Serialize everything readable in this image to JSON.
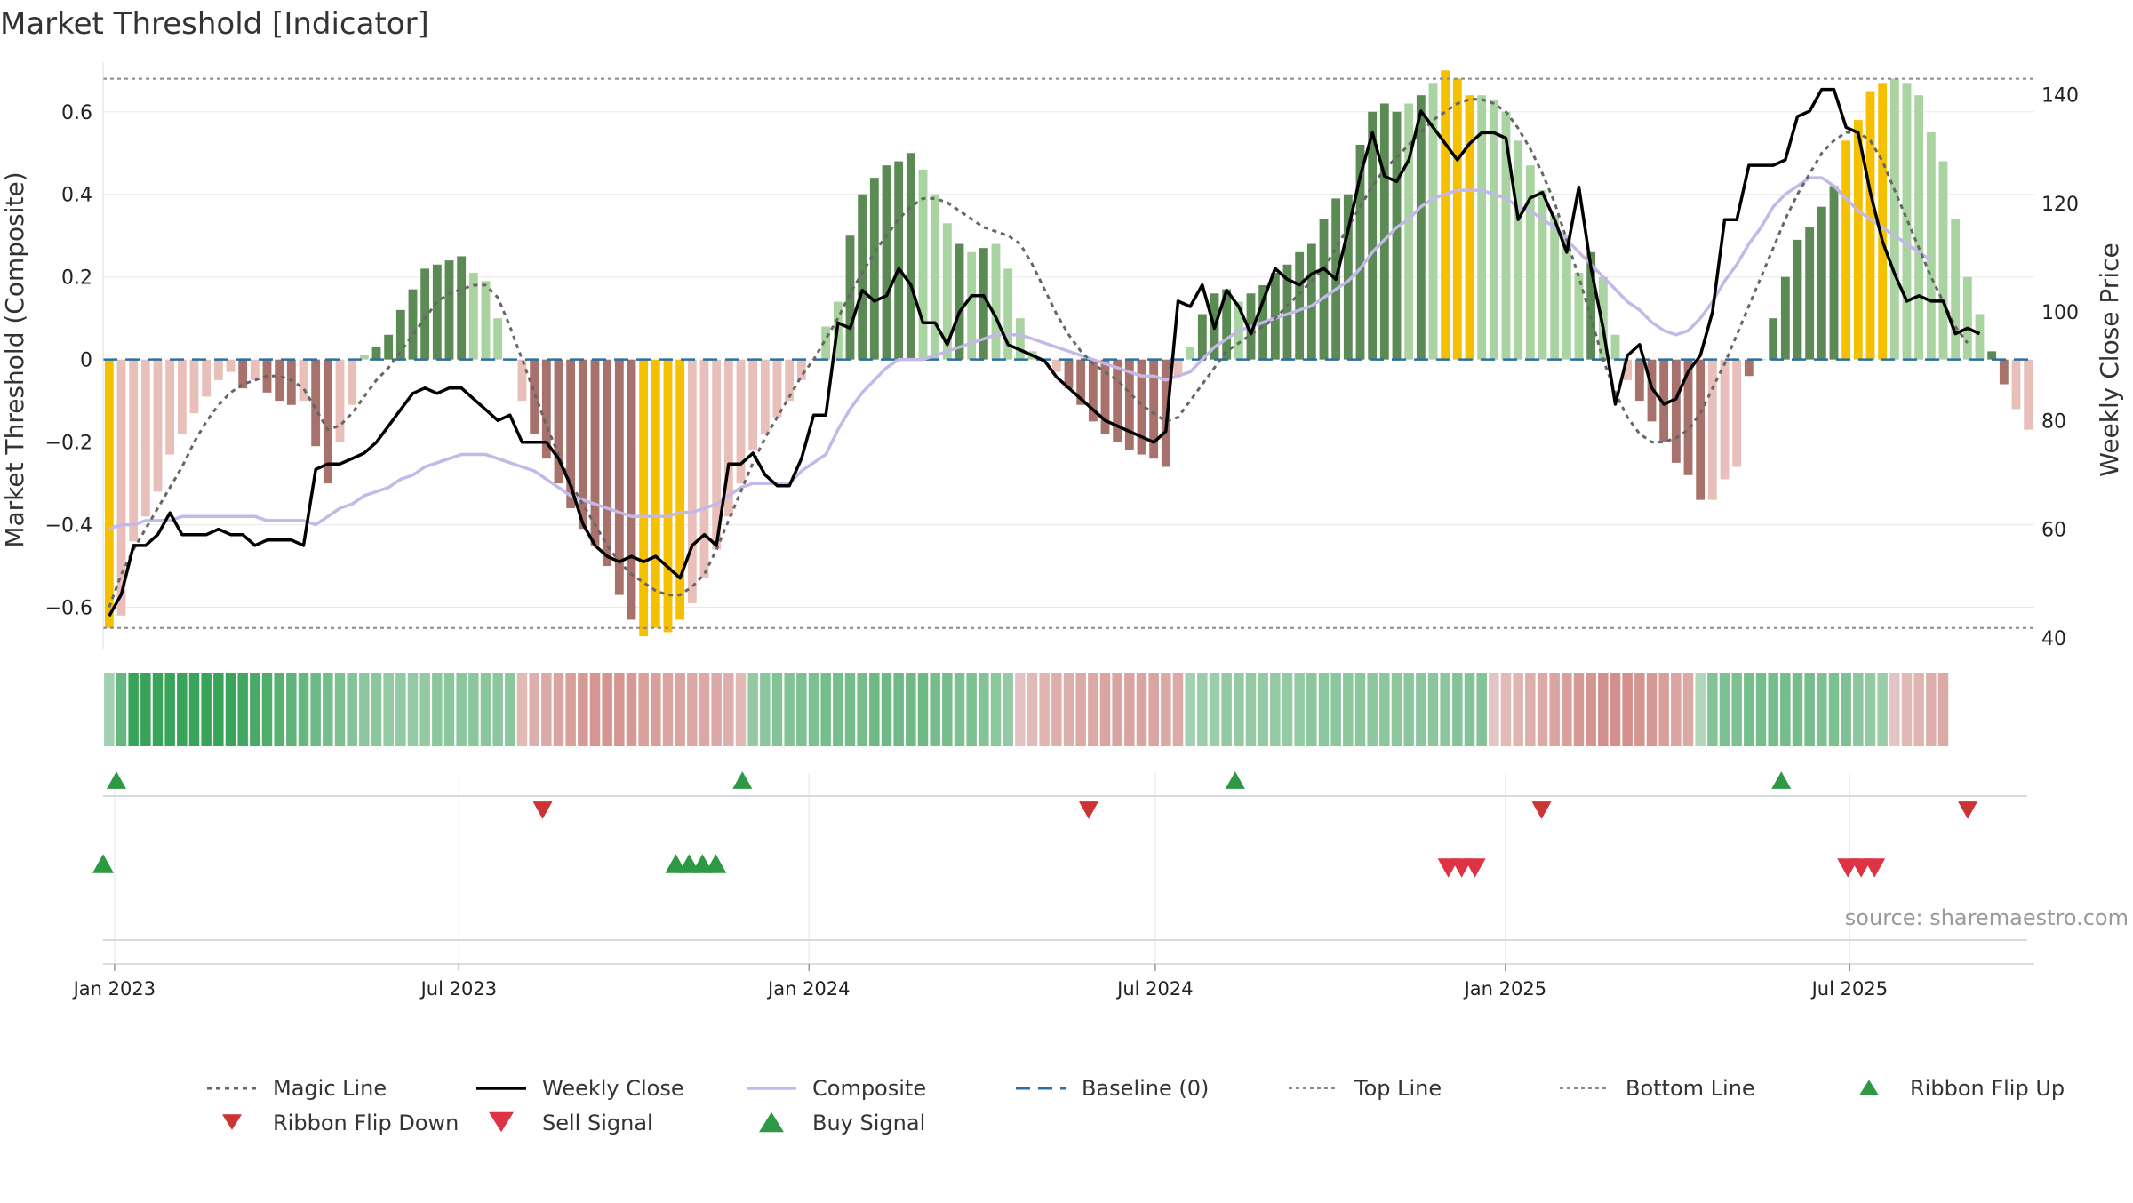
{
  "header": {
    "title": "Market Threshold [Indicator]"
  },
  "source_note": "source: sharemaestro.com",
  "colors": {
    "magic_line": "#666666",
    "weekly_close": "#000000",
    "composite": "#c3b8e8",
    "baseline": "#2e6f9e",
    "threshold_lines": "#888888",
    "bar_strong_pos": "#5b8a55",
    "bar_weak_pos": "#a9d3a0",
    "bar_strong_neg": "#a6726b",
    "bar_weak_neg": "#e9c0b9",
    "bar_extreme": "#f5c000",
    "ribbon_green": "#3aa35a",
    "ribbon_red": "#c9706a",
    "flip_up": "#2e9944",
    "flip_down": "#cc3333",
    "buy": "#2e9944",
    "sell": "#dd3344"
  },
  "chart_data": {
    "type": "bar",
    "title": "Market Threshold [Indicator]",
    "ylabel": "Market Threshold (Composite)",
    "ylabel_right": "Weekly Close Price",
    "ylim": [
      -0.7,
      0.72
    ],
    "ylim_right": [
      38,
      146
    ],
    "yticks": [
      -0.6,
      -0.4,
      -0.2,
      0,
      0.2,
      0.4,
      0.6
    ],
    "ytick_labels": [
      "−0.6",
      "−0.4",
      "−0.2",
      "0",
      "0.2",
      "0.4",
      "0.6"
    ],
    "yticks_right": [
      40,
      60,
      80,
      100,
      120,
      140
    ],
    "top_line": 0.68,
    "bottom_line": -0.65,
    "x_start": "2022-12-26",
    "x_end": "2025-10-06",
    "date_ticks": [
      {
        "date": "2023-01-01",
        "label": "Jan 2023"
      },
      {
        "date": "2023-07-01",
        "label": "Jul 2023"
      },
      {
        "date": "2024-01-01",
        "label": "Jan 2024"
      },
      {
        "date": "2024-07-01",
        "label": "Jul 2024"
      },
      {
        "date": "2025-01-01",
        "label": "Jan 2025"
      },
      {
        "date": "2025-07-01",
        "label": "Jul 2025"
      }
    ],
    "composite_bars": [
      -0.65,
      -0.62,
      -0.44,
      -0.38,
      -0.32,
      -0.23,
      -0.18,
      -0.13,
      -0.09,
      -0.05,
      -0.03,
      -0.07,
      -0.05,
      -0.08,
      -0.1,
      -0.11,
      -0.1,
      -0.21,
      -0.3,
      -0.2,
      -0.11,
      0.01,
      0.03,
      0.06,
      0.12,
      0.17,
      0.22,
      0.23,
      0.24,
      0.25,
      0.21,
      0.19,
      0.1,
      0.0,
      -0.1,
      -0.18,
      -0.24,
      -0.3,
      -0.36,
      -0.41,
      -0.45,
      -0.5,
      -0.57,
      -0.63,
      -0.67,
      -0.65,
      -0.66,
      -0.63,
      -0.59,
      -0.53,
      -0.46,
      -0.38,
      -0.3,
      -0.22,
      -0.18,
      -0.14,
      -0.1,
      -0.05,
      0.0,
      0.08,
      0.14,
      0.3,
      0.4,
      0.44,
      0.47,
      0.48,
      0.5,
      0.46,
      0.4,
      0.33,
      0.28,
      0.26,
      0.27,
      0.28,
      0.22,
      0.1,
      0.02,
      0.0,
      -0.03,
      -0.07,
      -0.11,
      -0.15,
      -0.18,
      -0.2,
      -0.22,
      -0.23,
      -0.24,
      -0.26,
      -0.04,
      0.03,
      0.11,
      0.16,
      0.17,
      0.14,
      0.16,
      0.18,
      0.21,
      0.23,
      0.26,
      0.28,
      0.34,
      0.39,
      0.4,
      0.52,
      0.6,
      0.62,
      0.6,
      0.62,
      0.64,
      0.67,
      0.7,
      0.68,
      0.64,
      0.64,
      0.63,
      0.6,
      0.53,
      0.47,
      0.41,
      0.35,
      0.3,
      0.21,
      0.26,
      0.2,
      0.06,
      -0.05,
      -0.1,
      -0.15,
      -0.2,
      -0.25,
      -0.28,
      -0.34,
      -0.34,
      -0.29,
      -0.26,
      -0.04,
      0.0,
      0.1,
      0.2,
      0.29,
      0.32,
      0.37,
      0.42,
      0.53,
      0.58,
      0.65,
      0.67,
      0.68,
      0.67,
      0.64,
      0.55,
      0.48,
      0.34,
      0.2,
      0.11,
      0.02,
      -0.06,
      -0.12,
      -0.17
    ],
    "bar_tones": [
      "E",
      "W",
      "W",
      "W",
      "W",
      "W",
      "W",
      "W",
      "W",
      "W",
      "W",
      "S",
      "W",
      "S",
      "S",
      "S",
      "W",
      "S",
      "S",
      "W",
      "W",
      "W",
      "S",
      "S",
      "S",
      "S",
      "S",
      "S",
      "S",
      "S",
      "W",
      "W",
      "W",
      "W",
      "W",
      "S",
      "S",
      "S",
      "S",
      "S",
      "S",
      "S",
      "S",
      "S",
      "E",
      "E",
      "E",
      "E",
      "W",
      "W",
      "W",
      "W",
      "W",
      "W",
      "W",
      "W",
      "W",
      "W",
      "W",
      "W",
      "W",
      "S",
      "S",
      "S",
      "S",
      "S",
      "S",
      "W",
      "W",
      "W",
      "S",
      "W",
      "S",
      "W",
      "W",
      "W",
      "W",
      "W",
      "W",
      "S",
      "S",
      "S",
      "S",
      "S",
      "S",
      "S",
      "S",
      "S",
      "W",
      "W",
      "S",
      "S",
      "S",
      "W",
      "S",
      "S",
      "S",
      "S",
      "S",
      "S",
      "S",
      "S",
      "S",
      "S",
      "S",
      "S",
      "S",
      "W",
      "S",
      "W",
      "E",
      "E",
      "E",
      "W",
      "W",
      "W",
      "W",
      "W",
      "W",
      "W",
      "W",
      "W",
      "S",
      "W",
      "W",
      "W",
      "S",
      "S",
      "S",
      "S",
      "S",
      "S",
      "W",
      "W",
      "W",
      "S",
      "S",
      "S",
      "S",
      "S",
      "S",
      "S",
      "S",
      "E",
      "E",
      "E",
      "E",
      "W",
      "W",
      "W",
      "W",
      "W",
      "W",
      "W",
      "W",
      "S",
      "S"
    ],
    "weekly_close": [
      44,
      48,
      57,
      57,
      59,
      63,
      59,
      59,
      59,
      60,
      59,
      59,
      57,
      58,
      58,
      58,
      57,
      71,
      72,
      72,
      73,
      74,
      76,
      79,
      82,
      85,
      86,
      85,
      86,
      86,
      84,
      82,
      80,
      81,
      76,
      76,
      76,
      73,
      68,
      61,
      57,
      55,
      54,
      55,
      54,
      55,
      53,
      51,
      57,
      59,
      57,
      72,
      72,
      74,
      70,
      68,
      68,
      73,
      81,
      81,
      98,
      97,
      104,
      102,
      103,
      108,
      105,
      98,
      98,
      94,
      100,
      103,
      103,
      99,
      94,
      93,
      92,
      91,
      88,
      86,
      84,
      82,
      80,
      79,
      78,
      77,
      76,
      78,
      102,
      101,
      105,
      97,
      104,
      101,
      96,
      102,
      108,
      106,
      105,
      107,
      108,
      106,
      115,
      125,
      133,
      125,
      124,
      128,
      137,
      134,
      131,
      128,
      131,
      133,
      133,
      132,
      117,
      121,
      122,
      117,
      111,
      123,
      108,
      97,
      83,
      92,
      94,
      86,
      83,
      84,
      89,
      92,
      100,
      117,
      117,
      127,
      127,
      127,
      128,
      136,
      137,
      141,
      141,
      134,
      133,
      122,
      113,
      107,
      102,
      103,
      102,
      102,
      96,
      97,
      96
    ],
    "magic_line": [
      -0.6,
      -0.52,
      -0.46,
      -0.41,
      -0.36,
      -0.31,
      -0.26,
      -0.2,
      -0.15,
      -0.11,
      -0.08,
      -0.06,
      -0.05,
      -0.04,
      -0.04,
      -0.05,
      -0.07,
      -0.12,
      -0.17,
      -0.16,
      -0.13,
      -0.09,
      -0.05,
      -0.02,
      0.02,
      0.06,
      0.1,
      0.14,
      0.16,
      0.17,
      0.18,
      0.18,
      0.15,
      0.08,
      0.0,
      -0.08,
      -0.16,
      -0.23,
      -0.3,
      -0.35,
      -0.4,
      -0.45,
      -0.49,
      -0.52,
      -0.54,
      -0.56,
      -0.57,
      -0.57,
      -0.55,
      -0.52,
      -0.46,
      -0.39,
      -0.32,
      -0.25,
      -0.19,
      -0.14,
      -0.09,
      -0.04,
      0.0,
      0.05,
      0.1,
      0.16,
      0.21,
      0.26,
      0.3,
      0.34,
      0.37,
      0.39,
      0.39,
      0.38,
      0.36,
      0.34,
      0.32,
      0.31,
      0.3,
      0.28,
      0.23,
      0.17,
      0.11,
      0.06,
      0.02,
      -0.01,
      -0.03,
      -0.05,
      -0.08,
      -0.11,
      -0.13,
      -0.15,
      -0.14,
      -0.1,
      -0.06,
      -0.02,
      0.02,
      0.04,
      0.06,
      0.08,
      0.1,
      0.13,
      0.16,
      0.19,
      0.22,
      0.27,
      0.32,
      0.37,
      0.42,
      0.46,
      0.49,
      0.52,
      0.55,
      0.58,
      0.6,
      0.62,
      0.63,
      0.63,
      0.62,
      0.6,
      0.56,
      0.51,
      0.45,
      0.38,
      0.29,
      0.2,
      0.1,
      0.0,
      -0.08,
      -0.14,
      -0.18,
      -0.2,
      -0.2,
      -0.19,
      -0.17,
      -0.13,
      -0.07,
      -0.01,
      0.06,
      0.13,
      0.2,
      0.27,
      0.34,
      0.4,
      0.45,
      0.5,
      0.53,
      0.55,
      0.55,
      0.53,
      0.48,
      0.41,
      0.34,
      0.27,
      0.2,
      0.14,
      0.08,
      0.04
    ],
    "composite_line": [
      -0.41,
      -0.4,
      -0.4,
      -0.39,
      -0.39,
      -0.39,
      -0.38,
      -0.38,
      -0.38,
      -0.38,
      -0.38,
      -0.38,
      -0.38,
      -0.39,
      -0.39,
      -0.39,
      -0.39,
      -0.4,
      -0.38,
      -0.36,
      -0.35,
      -0.33,
      -0.32,
      -0.31,
      -0.29,
      -0.28,
      -0.26,
      -0.25,
      -0.24,
      -0.23,
      -0.23,
      -0.23,
      -0.24,
      -0.25,
      -0.26,
      -0.27,
      -0.29,
      -0.31,
      -0.33,
      -0.34,
      -0.35,
      -0.36,
      -0.37,
      -0.38,
      -0.38,
      -0.38,
      -0.38,
      -0.37,
      -0.37,
      -0.36,
      -0.35,
      -0.33,
      -0.31,
      -0.3,
      -0.3,
      -0.3,
      -0.3,
      -0.27,
      -0.25,
      -0.23,
      -0.17,
      -0.12,
      -0.08,
      -0.05,
      -0.02,
      0.0,
      0.0,
      0.0,
      0.01,
      0.02,
      0.03,
      0.04,
      0.05,
      0.06,
      0.06,
      0.06,
      0.05,
      0.04,
      0.03,
      0.02,
      0.01,
      0.0,
      -0.01,
      -0.02,
      -0.03,
      -0.04,
      -0.04,
      -0.05,
      -0.04,
      -0.03,
      0.0,
      0.03,
      0.05,
      0.07,
      0.08,
      0.09,
      0.1,
      0.11,
      0.12,
      0.13,
      0.15,
      0.17,
      0.19,
      0.22,
      0.26,
      0.29,
      0.32,
      0.34,
      0.37,
      0.39,
      0.4,
      0.41,
      0.41,
      0.41,
      0.4,
      0.39,
      0.37,
      0.36,
      0.34,
      0.32,
      0.29,
      0.26,
      0.23,
      0.2,
      0.17,
      0.14,
      0.12,
      0.09,
      0.07,
      0.06,
      0.07,
      0.1,
      0.14,
      0.19,
      0.23,
      0.28,
      0.32,
      0.37,
      0.4,
      0.42,
      0.44,
      0.44,
      0.42,
      0.39,
      0.36,
      0.34,
      0.32,
      0.3,
      0.28,
      0.26,
      0.24
    ],
    "ribbon_scores": [
      0.3,
      0.7,
      1,
      1,
      1,
      1,
      1,
      1,
      1,
      1,
      1,
      0.95,
      0.9,
      0.85,
      0.8,
      0.75,
      0.7,
      0.65,
      0.6,
      0.55,
      0.5,
      0.45,
      0.45,
      0.4,
      0.4,
      0.4,
      0.4,
      0.45,
      0.45,
      0.45,
      0.45,
      0.45,
      0.45,
      0.45,
      -0.3,
      -0.4,
      -0.45,
      -0.5,
      -0.55,
      -0.6,
      -0.65,
      -0.65,
      -0.65,
      -0.6,
      -0.55,
      -0.55,
      -0.5,
      -0.5,
      -0.45,
      -0.45,
      -0.45,
      -0.4,
      -0.3,
      0.4,
      0.45,
      0.5,
      0.5,
      0.55,
      0.55,
      0.6,
      0.6,
      0.6,
      0.6,
      0.65,
      0.65,
      0.65,
      0.65,
      0.65,
      0.6,
      0.6,
      0.55,
      0.55,
      0.5,
      0.45,
      0.4,
      -0.2,
      -0.3,
      -0.35,
      -0.4,
      -0.4,
      -0.45,
      -0.45,
      -0.5,
      -0.5,
      -0.5,
      -0.5,
      -0.5,
      -0.45,
      -0.45,
      0.3,
      0.35,
      0.35,
      0.4,
      0.4,
      0.4,
      0.4,
      0.4,
      0.4,
      0.4,
      0.45,
      0.45,
      0.45,
      0.45,
      0.45,
      0.45,
      0.45,
      0.45,
      0.45,
      0.45,
      0.45,
      0.45,
      0.5,
      0.5,
      0.5,
      -0.2,
      -0.3,
      -0.35,
      -0.4,
      -0.45,
      -0.5,
      -0.55,
      -0.6,
      -0.65,
      -0.7,
      -0.7,
      -0.7,
      -0.65,
      -0.6,
      -0.55,
      -0.5,
      -0.45,
      0.2,
      0.5,
      0.55,
      0.55,
      0.6,
      0.6,
      0.6,
      0.6,
      0.6,
      0.6,
      0.55,
      0.55,
      0.55,
      0.45,
      0.4,
      0.35,
      -0.2,
      -0.3,
      -0.35,
      -0.4,
      -0.45
    ],
    "ribbon_flip_up": [
      "2023-01-02",
      "2023-11-27",
      "2024-08-12",
      "2025-05-26"
    ],
    "ribbon_flip_down": [
      "2023-08-14",
      "2024-05-27",
      "2025-01-20",
      "2025-09-01"
    ],
    "buy_signals": [
      "2022-12-26",
      "2023-10-23",
      "2023-10-30",
      "2023-11-06",
      "2023-11-13"
    ],
    "sell_signals": [
      "2024-12-02",
      "2024-12-09",
      "2024-12-16",
      "2025-06-30",
      "2025-07-07",
      "2025-07-14"
    ],
    "legend": [
      {
        "key": "magic",
        "label": "Magic Line"
      },
      {
        "key": "close",
        "label": "Weekly Close"
      },
      {
        "key": "composite",
        "label": "Composite"
      },
      {
        "key": "baseline",
        "label": "Baseline (0)"
      },
      {
        "key": "top",
        "label": "Top Line"
      },
      {
        "key": "bottom",
        "label": "Bottom Line"
      },
      {
        "key": "flipup",
        "label": "Ribbon Flip Up"
      },
      {
        "key": "flipdown",
        "label": "Ribbon Flip Down"
      },
      {
        "key": "sell",
        "label": "Sell Signal"
      },
      {
        "key": "buy",
        "label": "Buy Signal"
      }
    ]
  }
}
